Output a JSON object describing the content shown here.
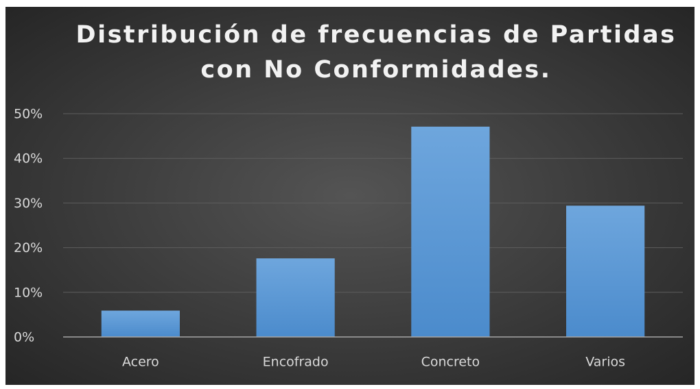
{
  "chart_data": {
    "type": "bar",
    "title": [
      "Distribución de frecuencias de Partidas",
      "con No Conformidades."
    ],
    "categories": [
      "Acero",
      "Encofrado",
      "Concreto",
      "Varios"
    ],
    "values": [
      5.9,
      17.6,
      47.1,
      29.4
    ],
    "color": "#5b9bd5",
    "ylim": [
      0,
      50
    ],
    "yticks": [
      {
        "value": 0,
        "label": "0%"
      },
      {
        "value": 10,
        "label": "10%"
      },
      {
        "value": 20,
        "label": "20%"
      },
      {
        "value": 30,
        "label": "30%"
      },
      {
        "value": 40,
        "label": "40%"
      },
      {
        "value": 50,
        "label": "50%"
      }
    ],
    "grid": true
  }
}
